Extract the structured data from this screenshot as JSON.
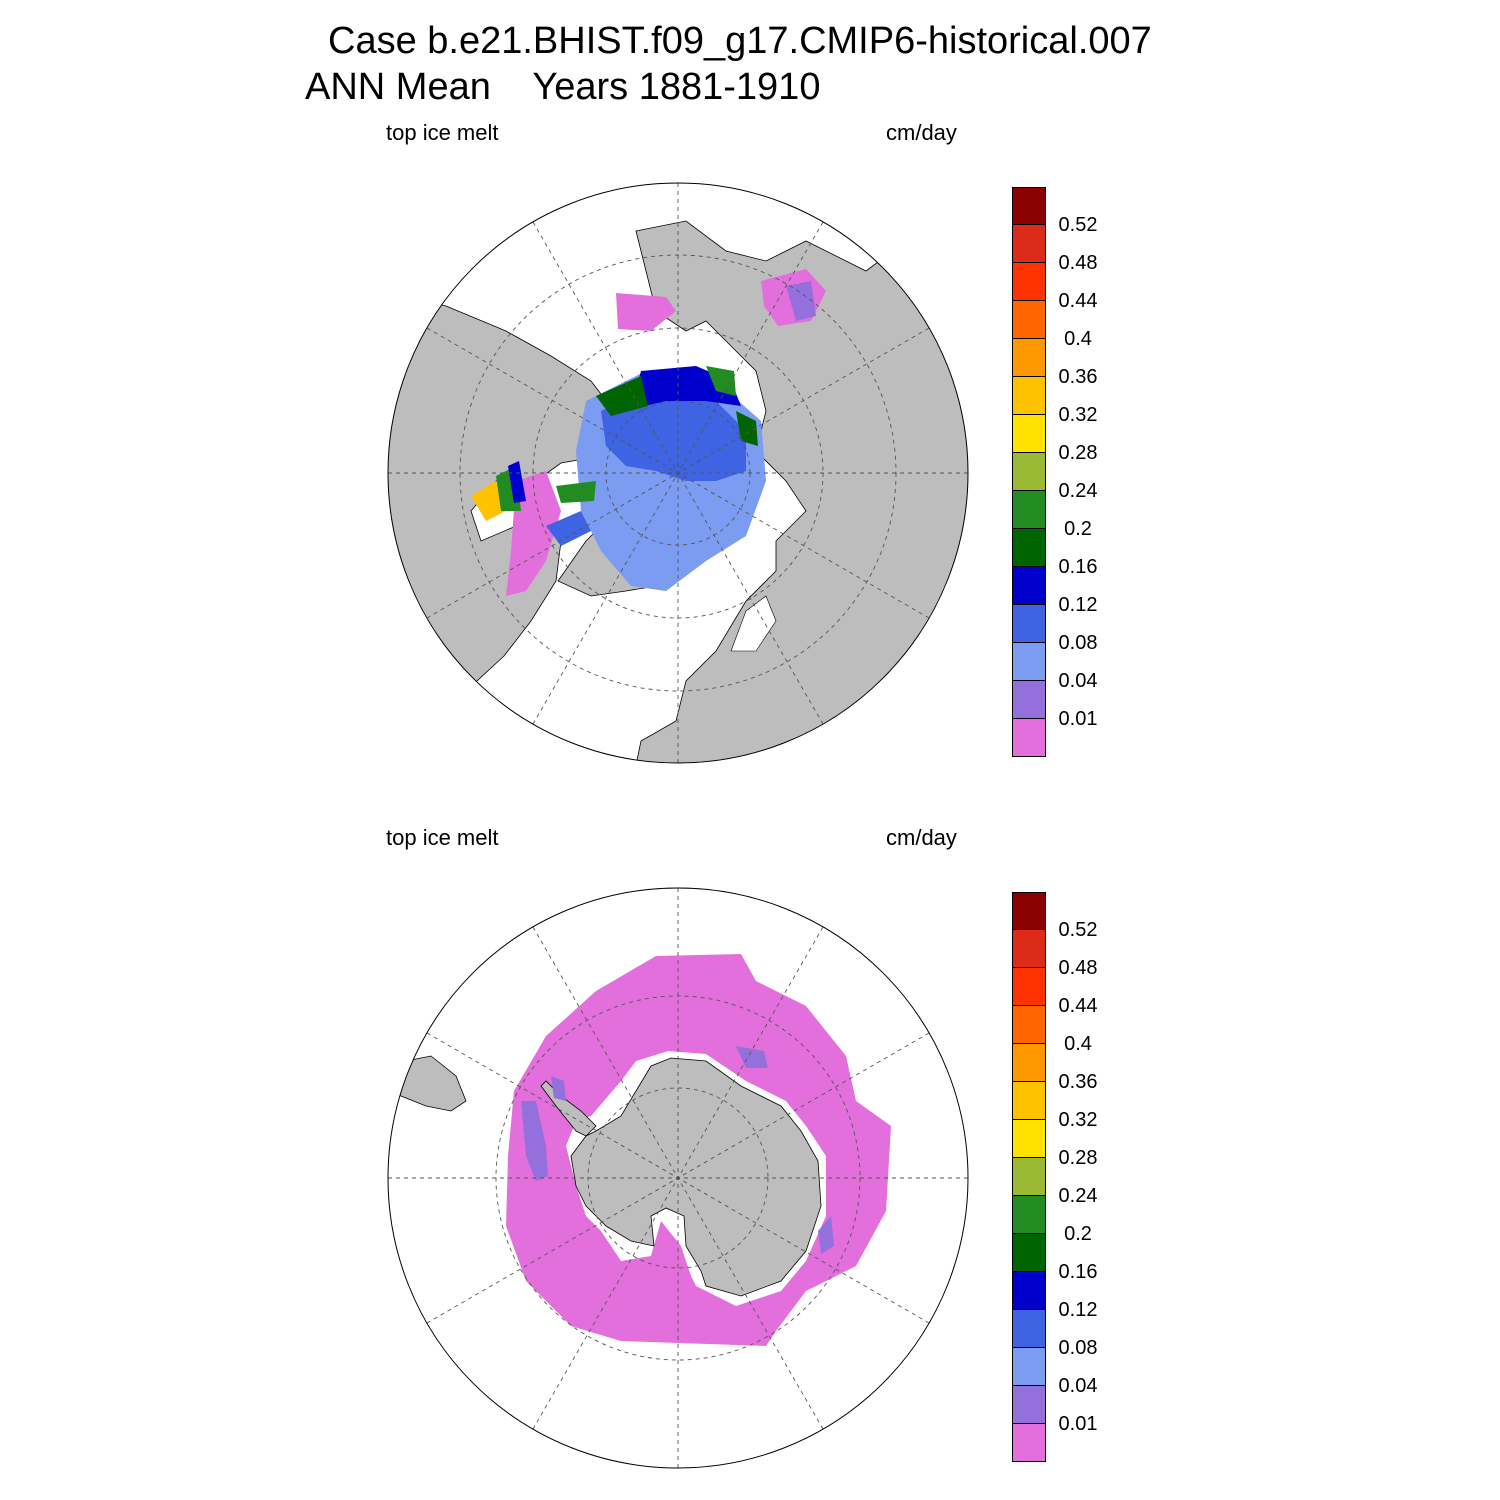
{
  "title_line1": "Case b.e21.BHIST.f09_g17.CMIP6-historical.007",
  "title_line2": "ANN Mean    Years 1881-1910",
  "colors": {
    "land": "#bdbdbd",
    "ocean": "#ffffff",
    "grid": "#555555"
  },
  "colorbar": {
    "colors": [
      "#e26fdc",
      "#9370db",
      "#7b9cf0",
      "#3e63e3",
      "#0000cd",
      "#006400",
      "#228b22",
      "#9ab934",
      "#ffe200",
      "#ffc200",
      "#ff9700",
      "#ff6600",
      "#ff3300",
      "#dc2b18",
      "#8b0000"
    ],
    "ticks": [
      "0.01",
      "0.04",
      "0.08",
      "0.12",
      "0.16",
      "0.2",
      "0.24",
      "0.28",
      "0.32",
      "0.36",
      "0.4",
      "0.44",
      "0.48",
      "0.52"
    ]
  },
  "panels": [
    {
      "id": "north",
      "left_label": "top ice melt",
      "right_label": "cm/day",
      "hemisphere": "Northern Hemisphere polar stereographic"
    },
    {
      "id": "south",
      "left_label": "top ice melt",
      "right_label": "cm/day",
      "hemisphere": "Southern Hemisphere polar stereographic"
    }
  ]
}
